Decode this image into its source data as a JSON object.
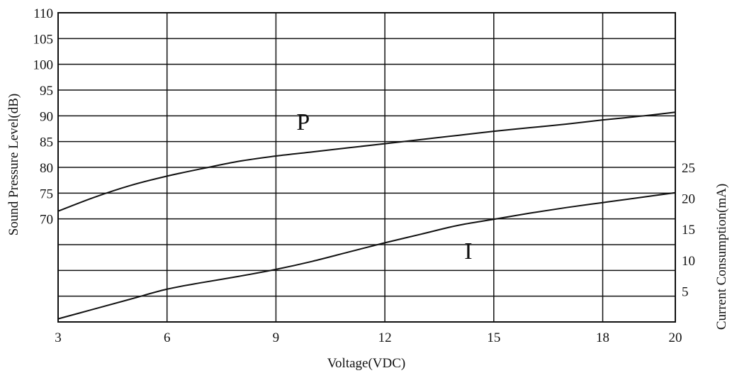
{
  "chart_data": {
    "type": "line",
    "title": "",
    "xlabel": "Voltage(VDC)",
    "ylabel_left": "Sound Pressure Level(dB)",
    "ylabel_right": "Current Consumption(mA)",
    "xlim": [
      3,
      20
    ],
    "x_ticks": [
      3,
      6,
      9,
      12,
      15,
      18,
      20
    ],
    "ylim_left": [
      50,
      110
    ],
    "y_left_ticks": [
      70,
      75,
      80,
      85,
      90,
      95,
      100,
      105,
      110
    ],
    "ylim_right": [
      0,
      50
    ],
    "y_right_ticks": [
      5,
      10,
      15,
      20,
      25
    ],
    "grid": true,
    "legend": "none",
    "series": [
      {
        "name": "P",
        "axis": "left",
        "x": [
          3,
          4,
          5,
          6,
          7,
          8,
          9,
          10,
          11,
          12,
          13,
          14,
          15,
          16,
          17,
          18,
          19,
          20
        ],
        "y": [
          71.5,
          74.2,
          76.5,
          78.3,
          79.8,
          81.2,
          82.2,
          83.0,
          83.8,
          84.6,
          85.4,
          86.2,
          87.0,
          87.7,
          88.4,
          89.2,
          89.9,
          90.7
        ]
      },
      {
        "name": "I",
        "axis": "right",
        "x": [
          3,
          4,
          5,
          6,
          7,
          8,
          9,
          10,
          11,
          12,
          13,
          14,
          15,
          16,
          17,
          18,
          19,
          20
        ],
        "y": [
          0.5,
          2.1,
          3.7,
          5.3,
          6.4,
          7.4,
          8.5,
          9.8,
          11.3,
          12.8,
          14.2,
          15.6,
          16.6,
          17.6,
          18.5,
          19.3,
          20.1,
          20.9
        ]
      }
    ]
  }
}
